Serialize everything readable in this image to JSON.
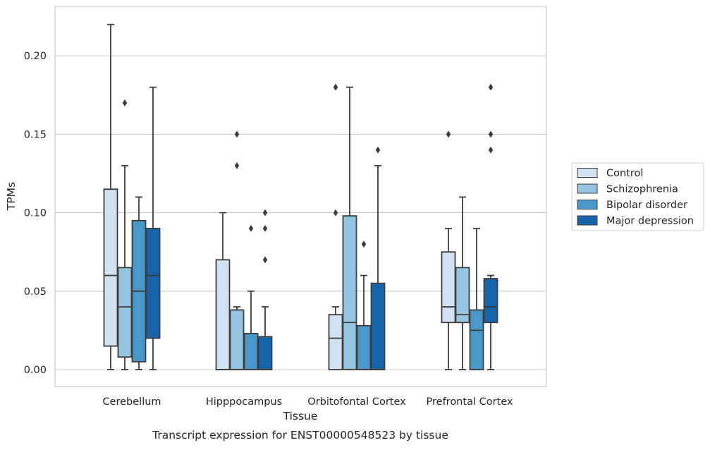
{
  "chart_data": {
    "type": "box",
    "title": "",
    "caption": "Transcript expression for ENST00000548523 by tissue",
    "xlabel": "Tissue",
    "ylabel": "TPMs",
    "ylim": [
      -0.011,
      0.232
    ],
    "yticks": [
      0.0,
      0.05,
      0.1,
      0.15,
      0.2
    ],
    "ytick_labels": [
      "0.00",
      "0.05",
      "0.10",
      "0.15",
      "0.20"
    ],
    "grid": "horizontal",
    "legend_position": "right",
    "categories": [
      "Cerebellum",
      "Hipppocampus",
      "Orbitofontal Cortex",
      "Prefrontal Cortex"
    ],
    "series": [
      {
        "name": "Control",
        "color": "#d0e1f2",
        "boxes": [
          {
            "whisker_low": 0.0,
            "q1": 0.015,
            "median": 0.06,
            "q3": 0.115,
            "whisker_high": 0.22,
            "outliers": []
          },
          {
            "whisker_low": 0.0,
            "q1": 0.0,
            "median": 0.0,
            "q3": 0.07,
            "whisker_high": 0.1,
            "outliers": []
          },
          {
            "whisker_low": 0.0,
            "q1": 0.0,
            "median": 0.02,
            "q3": 0.035,
            "whisker_high": 0.04,
            "outliers": [
              0.1,
              0.18
            ]
          },
          {
            "whisker_low": 0.0,
            "q1": 0.03,
            "median": 0.04,
            "q3": 0.075,
            "whisker_high": 0.09,
            "outliers": [
              0.15
            ]
          }
        ]
      },
      {
        "name": "Schizophrenia",
        "color": "#94c4df",
        "boxes": [
          {
            "whisker_low": 0.0,
            "q1": 0.008,
            "median": 0.04,
            "q3": 0.065,
            "whisker_high": 0.13,
            "outliers": [
              0.17
            ]
          },
          {
            "whisker_low": 0.0,
            "q1": 0.0,
            "median": 0.0,
            "q3": 0.038,
            "whisker_high": 0.04,
            "outliers": [
              0.13,
              0.15
            ]
          },
          {
            "whisker_low": 0.0,
            "q1": 0.0,
            "median": 0.03,
            "q3": 0.098,
            "whisker_high": 0.18,
            "outliers": []
          },
          {
            "whisker_low": 0.0,
            "q1": 0.03,
            "median": 0.035,
            "q3": 0.065,
            "whisker_high": 0.11,
            "outliers": []
          }
        ]
      },
      {
        "name": "Bipolar disorder",
        "color": "#4a98c9",
        "boxes": [
          {
            "whisker_low": 0.0,
            "q1": 0.005,
            "median": 0.05,
            "q3": 0.095,
            "whisker_high": 0.11,
            "outliers": []
          },
          {
            "whisker_low": 0.0,
            "q1": 0.0,
            "median": 0.0,
            "q3": 0.023,
            "whisker_high": 0.05,
            "outliers": [
              0.09
            ]
          },
          {
            "whisker_low": 0.0,
            "q1": 0.0,
            "median": 0.0,
            "q3": 0.028,
            "whisker_high": 0.06,
            "outliers": [
              0.08
            ]
          },
          {
            "whisker_low": 0.0,
            "q1": 0.0,
            "median": 0.025,
            "q3": 0.038,
            "whisker_high": 0.09,
            "outliers": []
          }
        ]
      },
      {
        "name": "Major depression",
        "color": "#1764ab",
        "boxes": [
          {
            "whisker_low": 0.0,
            "q1": 0.02,
            "median": 0.06,
            "q3": 0.09,
            "whisker_high": 0.18,
            "outliers": []
          },
          {
            "whisker_low": 0.0,
            "q1": 0.0,
            "median": 0.0,
            "q3": 0.021,
            "whisker_high": 0.04,
            "outliers": [
              0.07,
              0.09,
              0.1
            ]
          },
          {
            "whisker_low": 0.0,
            "q1": 0.0,
            "median": 0.0,
            "q3": 0.055,
            "whisker_high": 0.13,
            "outliers": [
              0.14
            ]
          },
          {
            "whisker_low": 0.0,
            "q1": 0.03,
            "median": 0.04,
            "q3": 0.058,
            "whisker_high": 0.06,
            "outliers": [
              0.14,
              0.15,
              0.18
            ]
          }
        ]
      }
    ]
  }
}
